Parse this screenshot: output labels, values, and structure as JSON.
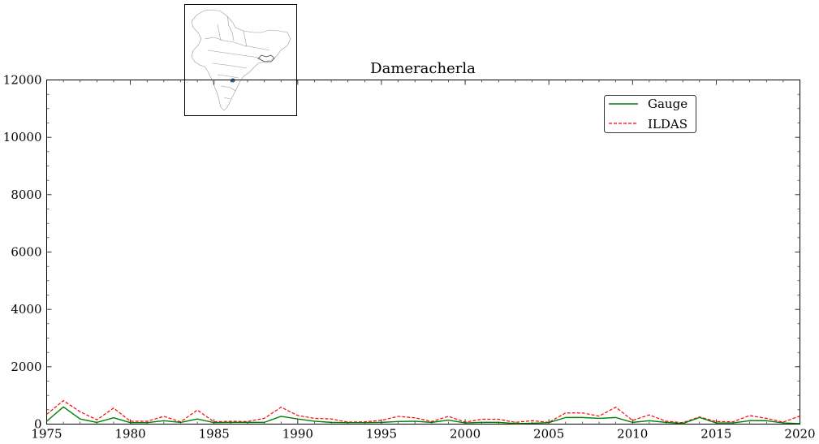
{
  "chart_data": {
    "type": "line",
    "title": "Dameracherla",
    "xlabel": "",
    "ylabel": "",
    "xlim": [
      1975,
      2020
    ],
    "ylim": [
      0,
      12000
    ],
    "xticks": [
      1975,
      1980,
      1985,
      1990,
      1995,
      2000,
      2005,
      2010,
      2015,
      2020
    ],
    "yticks": [
      0,
      2000,
      4000,
      6000,
      8000,
      10000,
      12000
    ],
    "grid": false,
    "legend_position": "top-right",
    "x": [
      1975,
      1976,
      1977,
      1978,
      1979,
      1980,
      1981,
      1982,
      1983,
      1984,
      1985,
      1986,
      1987,
      1988,
      1989,
      1990,
      1991,
      1992,
      1993,
      1994,
      1995,
      1996,
      1997,
      1998,
      1999,
      2000,
      2001,
      2002,
      2003,
      2004,
      2005,
      2006,
      2007,
      2008,
      2009,
      2010,
      2011,
      2012,
      2013,
      2014,
      2015,
      2016,
      2017,
      2018,
      2019,
      2020
    ],
    "series": [
      {
        "name": "Gauge",
        "color": "#008000",
        "style": "solid",
        "values": [
          100,
          600,
          180,
          60,
          220,
          50,
          50,
          120,
          60,
          180,
          50,
          60,
          60,
          60,
          270,
          180,
          100,
          60,
          50,
          50,
          60,
          90,
          100,
          60,
          140,
          40,
          60,
          60,
          20,
          30,
          50,
          230,
          230,
          200,
          230,
          60,
          120,
          60,
          20,
          230,
          40,
          40,
          120,
          120,
          40,
          20
        ]
      },
      {
        "name": "ILDAS",
        "color": "#ff0000",
        "style": "dashed",
        "values": [
          340,
          820,
          430,
          150,
          560,
          100,
          100,
          270,
          80,
          490,
          80,
          100,
          90,
          200,
          590,
          300,
          200,
          180,
          70,
          80,
          130,
          270,
          220,
          90,
          270,
          70,
          170,
          170,
          60,
          120,
          60,
          390,
          390,
          280,
          590,
          130,
          320,
          100,
          50,
          250,
          90,
          80,
          300,
          200,
          70,
          280
        ]
      }
    ]
  },
  "inset_map": {
    "icon": "india-location-map-icon",
    "marker_color": "#3a6ea5",
    "border_color": "#9a9a9a"
  }
}
